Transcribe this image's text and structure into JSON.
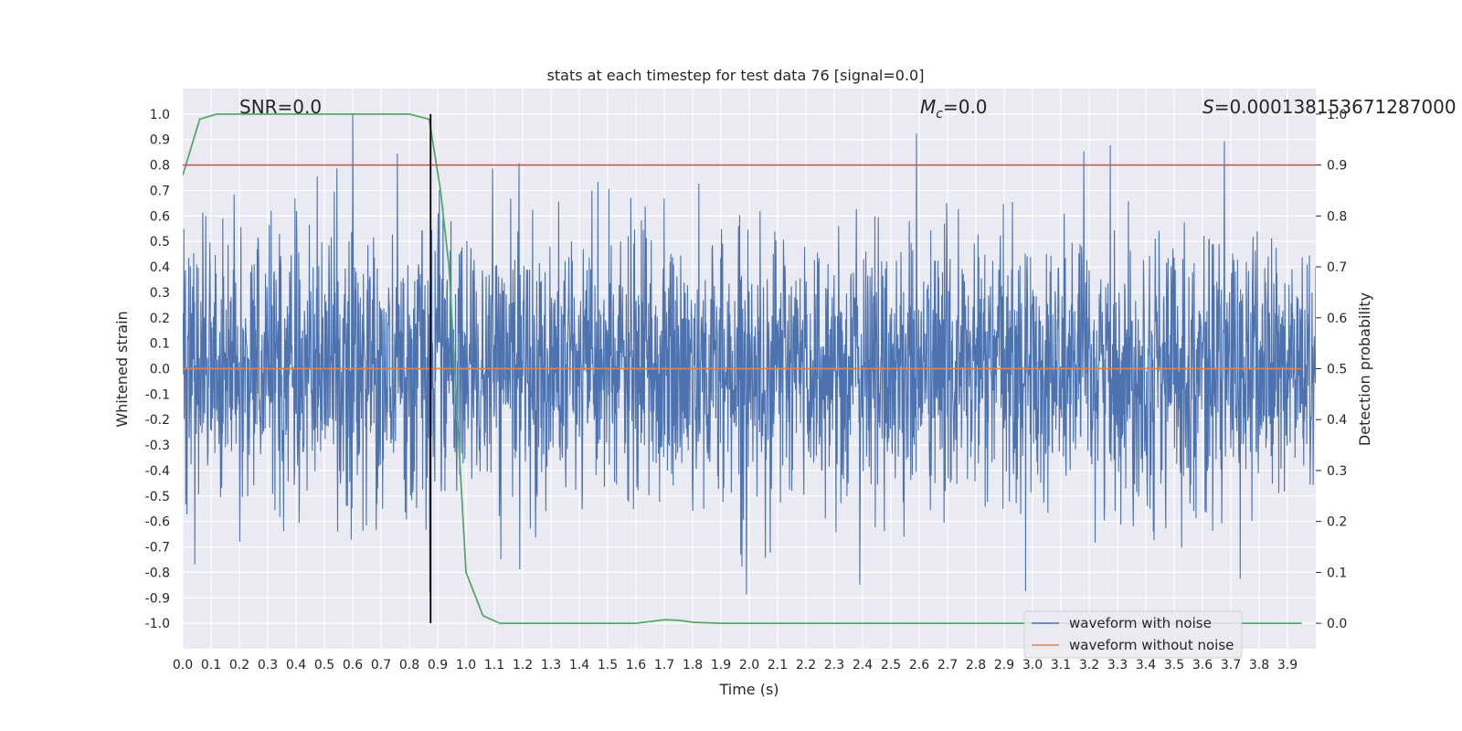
{
  "chart_data": {
    "type": "line",
    "title": "stats at each timestep for test data 76 [signal=0.0]",
    "xlabel": "Time (s)",
    "ylabel": "Whitened strain",
    "y2label": "Detection probability",
    "xlim": [
      0.0,
      4.0
    ],
    "ylim": [
      -1.1,
      1.1
    ],
    "y2lim": [
      -0.05,
      1.05
    ],
    "xticks": [
      "0.0",
      "0.1",
      "0.2",
      "0.3",
      "0.4",
      "0.5",
      "0.6",
      "0.7",
      "0.8",
      "0.9",
      "1.0",
      "1.1",
      "1.2",
      "1.3",
      "1.4",
      "1.5",
      "1.6",
      "1.7",
      "1.8",
      "1.9",
      "2.0",
      "2.1",
      "2.2",
      "2.3",
      "2.4",
      "2.5",
      "2.6",
      "2.7",
      "2.8",
      "2.9",
      "3.0",
      "3.1",
      "3.2",
      "3.3",
      "3.4",
      "3.5",
      "3.6",
      "3.7",
      "3.8",
      "3.9"
    ],
    "yticks": [
      "1.0",
      "0.9",
      "0.8",
      "0.7",
      "0.6",
      "0.5",
      "0.4",
      "0.3",
      "0.2",
      "0.1",
      "0.0",
      "-0.1",
      "-0.2",
      "-0.3",
      "-0.4",
      "-0.5",
      "-0.6",
      "-0.7",
      "-0.8",
      "-0.9",
      "-1.0"
    ],
    "y2ticks": [
      "1.0",
      "0.9",
      "0.8",
      "0.7",
      "0.6",
      "0.5",
      "0.4",
      "0.3",
      "0.2",
      "0.1",
      "0.0"
    ],
    "grid": true,
    "legend_position": "bottom-right",
    "annotations": {
      "snr": "SNR=0.0",
      "mc_symbol": "M",
      "mc_sub": "c",
      "mc_value": "=0.0",
      "s_symbol": "S",
      "s_value": "=0.000138153671287000"
    },
    "series": [
      {
        "name": "waveform with noise",
        "axis": "left",
        "color": "#4c72b0",
        "description_of_shape": "dense random noise, normalized to max 1.0",
        "x_range": [
          0.0,
          4.0
        ],
        "y_range": [
          -1.0,
          1.0
        ]
      },
      {
        "name": "waveform without noise",
        "axis": "left",
        "color": "#dd8452",
        "x": [
          0.0,
          3.95
        ],
        "y": [
          0.0,
          0.0
        ]
      },
      {
        "axis": "right",
        "color": "#55a868",
        "x": [
          0.0,
          0.06,
          0.12,
          0.2,
          0.4,
          0.6,
          0.8,
          0.87,
          0.91,
          0.94,
          0.98,
          1.0,
          1.06,
          1.12,
          1.2,
          1.4,
          1.6,
          1.7,
          1.75,
          1.8,
          1.9,
          2.0,
          3.95
        ],
        "y": [
          0.88,
          0.99,
          1.0,
          1.0,
          1.0,
          1.0,
          1.0,
          0.99,
          0.85,
          0.7,
          0.3,
          0.1,
          0.015,
          0.0,
          0.0,
          0.0,
          0.0,
          0.007,
          0.006,
          0.002,
          0.0,
          0.0,
          0.0
        ]
      },
      {
        "axis": "right",
        "color": "#c44e52",
        "x": [
          0.0,
          4.0
        ],
        "y": [
          0.9,
          0.9
        ]
      },
      {
        "axis": "left",
        "color": "#000000",
        "x": [
          0.875,
          0.875
        ],
        "y": [
          -1.0,
          1.0
        ]
      }
    ]
  }
}
